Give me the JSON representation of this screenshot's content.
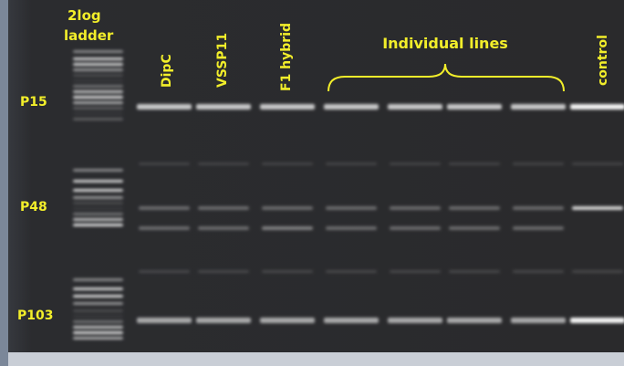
{
  "ladder_label": [
    "2log",
    "ladder"
  ],
  "lane_labels": [
    "DipC",
    "VSSP11",
    "F1 hybrid"
  ],
  "group_label": "Individual lines",
  "control_label": "control",
  "row_labels": [
    "P15",
    "P48",
    "P103"
  ]
}
